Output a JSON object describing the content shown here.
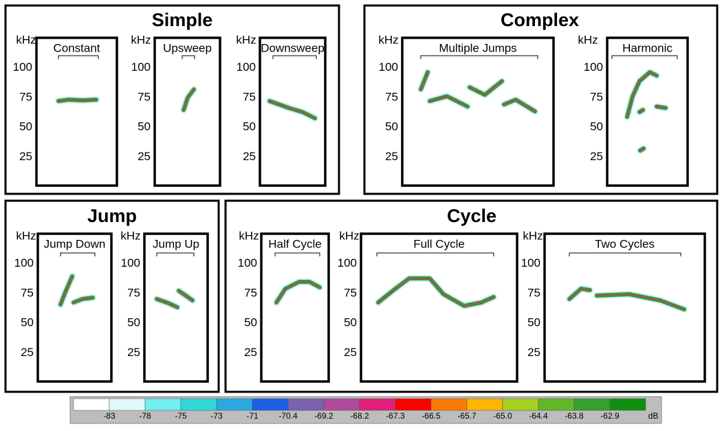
{
  "groups": [
    {
      "title": "Simple",
      "panels": [
        {
          "label": "Constant"
        },
        {
          "label": "Upsweep"
        },
        {
          "label": "Downsweep"
        }
      ]
    },
    {
      "title": "Complex",
      "panels": [
        {
          "label": "Multiple Jumps"
        },
        {
          "label": "Harmonic"
        }
      ]
    },
    {
      "title": "Jump",
      "panels": [
        {
          "label": "Jump Down"
        },
        {
          "label": "Jump Up"
        }
      ]
    },
    {
      "title": "Cycle",
      "panels": [
        {
          "label": "Half Cycle"
        },
        {
          "label": "Full Cycle"
        },
        {
          "label": "Two Cycles"
        }
      ]
    }
  ],
  "axis": {
    "unit": "kHz",
    "ylim": [
      0,
      125
    ],
    "yticks": [
      100,
      75,
      50,
      25
    ]
  },
  "colorbar": {
    "unit": "dB",
    "labels": [
      "-83",
      "-78",
      "-75",
      "-73",
      "-71",
      "-70.4",
      "-69.2",
      "-68.2",
      "-67.3",
      "-66.5",
      "-65.7",
      "-65.0",
      "-64.4",
      "-63.8",
      "-62.9"
    ],
    "colors": [
      "#ffffff",
      "#e0fafa",
      "#70f0f0",
      "#30d8d8",
      "#2aa8e0",
      "#1f5fe8",
      "#7a62b0",
      "#b04a9a",
      "#e0207a",
      "#ff0000",
      "#ff7a00",
      "#ffb400",
      "#a8d020",
      "#60b828",
      "#34a030",
      "#109010"
    ]
  }
}
